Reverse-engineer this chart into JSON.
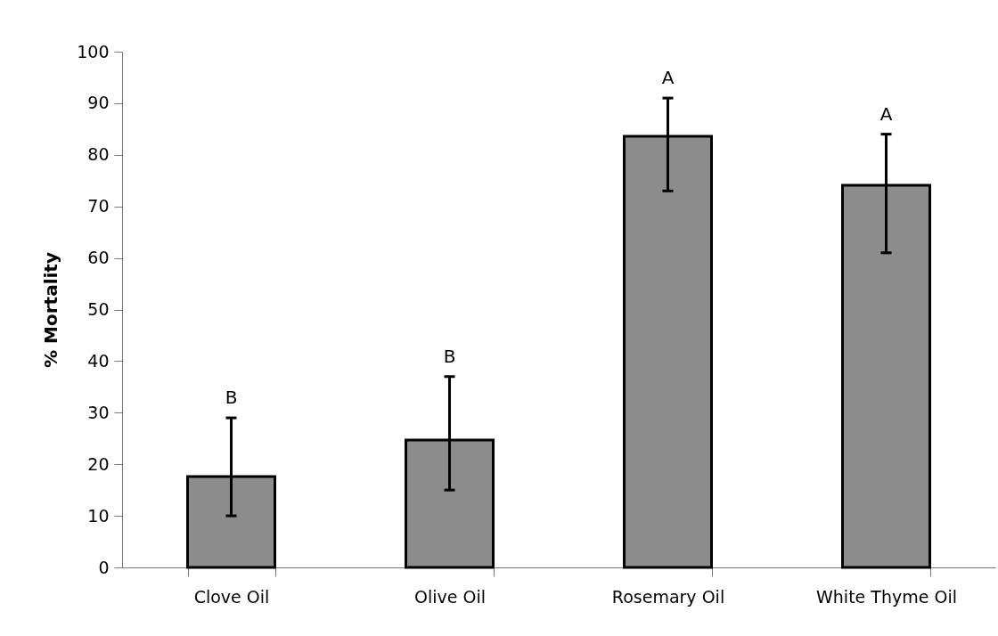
{
  "chart_data": {
    "type": "bar",
    "ylabel": "% Mortality",
    "categories": [
      "Clove Oil",
      "Olive Oil",
      "Rosemary Oil",
      "White Thyme Oil"
    ],
    "values": [
      17.6,
      24.7,
      83.6,
      74.1
    ],
    "errors": [
      [
        10,
        29
      ],
      [
        15,
        37
      ],
      [
        73,
        91
      ],
      [
        61,
        84
      ]
    ],
    "color": "#8c8c8c",
    "ylim": [
      0,
      100
    ],
    "yticks": [
      0,
      10,
      20,
      30,
      40,
      50,
      60,
      70,
      80,
      90,
      100
    ],
    "grid": false,
    "annotations": [
      {
        "text": "B",
        "x": "Clove Oil",
        "y": 29
      },
      {
        "text": "B",
        "x": "Olive Oil",
        "y": 37
      },
      {
        "text": "A",
        "x": "Rosemary Oil",
        "y": 91
      },
      {
        "text": "A",
        "x": "White Thyme Oil",
        "y": 84
      }
    ]
  }
}
